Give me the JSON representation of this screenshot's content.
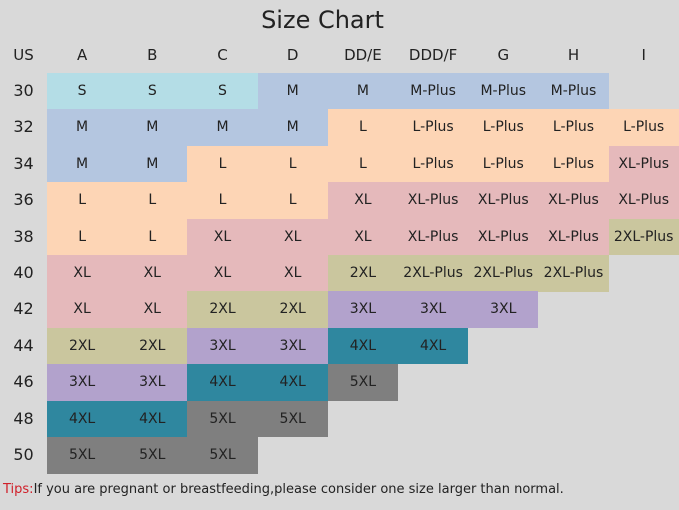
{
  "chart_data": {
    "type": "table",
    "title": "Size Chart",
    "row_header": "US",
    "columns": [
      "A",
      "B",
      "C",
      "D",
      "DD/E",
      "DDD/F",
      "G",
      "H",
      "I"
    ],
    "rows": [
      {
        "band": "30",
        "sizes": [
          "S",
          "S",
          "S",
          "M",
          "M",
          "M-Plus",
          "M-Plus",
          "M-Plus",
          ""
        ]
      },
      {
        "band": "32",
        "sizes": [
          "M",
          "M",
          "M",
          "M",
          "L",
          "L-Plus",
          "L-Plus",
          "L-Plus",
          "L-Plus"
        ]
      },
      {
        "band": "34",
        "sizes": [
          "M",
          "M",
          "L",
          "L",
          "L",
          "L-Plus",
          "L-Plus",
          "L-Plus",
          "XL-Plus"
        ]
      },
      {
        "band": "36",
        "sizes": [
          "L",
          "L",
          "L",
          "L",
          "XL",
          "XL-Plus",
          "XL-Plus",
          "XL-Plus",
          "XL-Plus"
        ]
      },
      {
        "band": "38",
        "sizes": [
          "L",
          "L",
          "XL",
          "XL",
          "XL",
          "XL-Plus",
          "XL-Plus",
          "XL-Plus",
          "2XL-Plus"
        ]
      },
      {
        "band": "40",
        "sizes": [
          "XL",
          "XL",
          "XL",
          "XL",
          "2XL",
          "2XL-Plus",
          "2XL-Plus",
          "2XL-Plus",
          ""
        ]
      },
      {
        "band": "42",
        "sizes": [
          "XL",
          "XL",
          "2XL",
          "2XL",
          "3XL",
          "3XL",
          "3XL",
          "",
          ""
        ]
      },
      {
        "band": "44",
        "sizes": [
          "2XL",
          "2XL",
          "3XL",
          "3XL",
          "4XL",
          "4XL",
          "",
          "",
          ""
        ]
      },
      {
        "band": "46",
        "sizes": [
          "3XL",
          "3XL",
          "4XL",
          "4XL",
          "5XL",
          "",
          "",
          "",
          ""
        ]
      },
      {
        "band": "48",
        "sizes": [
          "4XL",
          "4XL",
          "5XL",
          "5XL",
          "",
          "",
          "",
          "",
          ""
        ]
      },
      {
        "band": "50",
        "sizes": [
          "5XL",
          "5XL",
          "5XL",
          "",
          "",
          "",
          "",
          "",
          ""
        ]
      }
    ],
    "size_colors": {
      "S": "#b4dde6",
      "M": "#b4c6e0",
      "M-Plus": "#b4c6e0",
      "L": "#fdd5b5",
      "L-Plus": "#fdd5b5",
      "XL": "#e5b9bb",
      "XL-Plus": "#e5b9bb",
      "2XL": "#cac69e",
      "2XL-Plus": "#cac69e",
      "3XL": "#b2a2cc",
      "4XL": "#2f879f",
      "5XL": "#7f7f7f"
    }
  },
  "tips": {
    "label": "Tips:",
    "text": "If you are pregnant or breastfeeding,please consider one size larger than normal."
  },
  "colors": {
    "background": "#d9d9d9",
    "tips_label": "#d0202a"
  }
}
